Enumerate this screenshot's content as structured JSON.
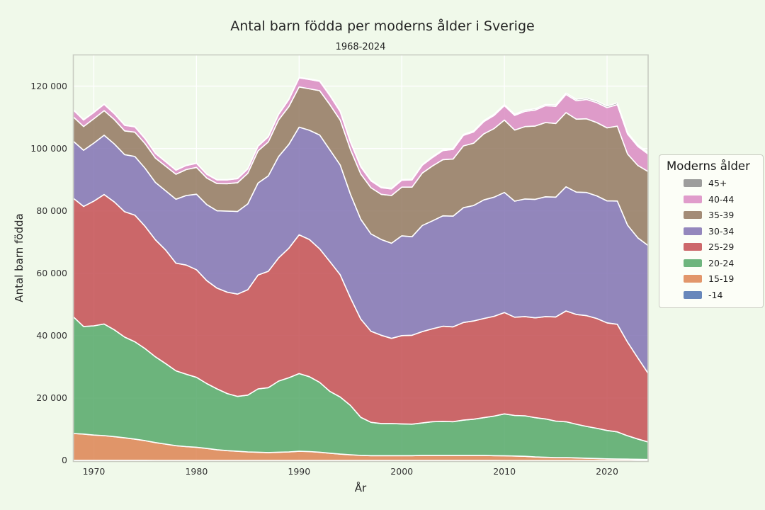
{
  "figure": {
    "background_color": "#f0f9ea",
    "plot_border_color": "#c9ccc2",
    "gridline_color": "#ffffff",
    "area_edge_color": "#ffffff"
  },
  "chart_data": {
    "type": "area",
    "stacked": true,
    "title": "Antal barn födda per moderns ålder i Sverige",
    "subtitle": "1968-2024",
    "xlabel": "År",
    "ylabel": "Antal barn födda",
    "xlim": [
      1968,
      2024
    ],
    "ylim": [
      0,
      130000
    ],
    "grid": true,
    "x_ticks": {
      "values": [
        1970,
        1980,
        1990,
        2000,
        2010,
        2020
      ],
      "labels": [
        "1970",
        "1980",
        "1990",
        "2000",
        "2010",
        "2020"
      ]
    },
    "y_ticks": {
      "values": [
        0,
        20000,
        40000,
        60000,
        80000,
        100000,
        120000
      ],
      "labels": [
        "0",
        "20 000",
        "40 000",
        "60 000",
        "80 000",
        "100 000",
        "120 000"
      ]
    },
    "x": [
      1968,
      1969,
      1970,
      1971,
      1972,
      1973,
      1974,
      1975,
      1976,
      1977,
      1978,
      1979,
      1980,
      1981,
      1982,
      1983,
      1984,
      1985,
      1986,
      1987,
      1988,
      1989,
      1990,
      1991,
      1992,
      1993,
      1994,
      1995,
      1996,
      1997,
      1998,
      1999,
      2000,
      2001,
      2002,
      2003,
      2004,
      2005,
      2006,
      2007,
      2008,
      2009,
      2010,
      2011,
      2012,
      2013,
      2014,
      2015,
      2016,
      2017,
      2018,
      2019,
      2020,
      2021,
      2022,
      2023,
      2024
    ],
    "series": [
      {
        "name": "-14",
        "color": "#4C72B0",
        "values": [
          40,
          40,
          40,
          40,
          40,
          35,
          35,
          35,
          30,
          30,
          30,
          30,
          30,
          30,
          30,
          25,
          25,
          25,
          25,
          25,
          25,
          25,
          30,
          30,
          25,
          25,
          20,
          20,
          20,
          20,
          20,
          20,
          15,
          15,
          15,
          15,
          15,
          15,
          15,
          15,
          12,
          12,
          10,
          10,
          10,
          10,
          10,
          8,
          8,
          8,
          8,
          6,
          6,
          5,
          5,
          5,
          5
        ]
      },
      {
        "name": "15-19",
        "color": "#DD8452",
        "values": [
          8600,
          8400,
          8100,
          7900,
          7600,
          7200,
          6800,
          6300,
          5700,
          5200,
          4700,
          4400,
          4200,
          3800,
          3400,
          3100,
          2900,
          2700,
          2600,
          2500,
          2600,
          2700,
          2900,
          2800,
          2600,
          2300,
          2000,
          1800,
          1600,
          1500,
          1500,
          1500,
          1500,
          1500,
          1600,
          1600,
          1600,
          1600,
          1600,
          1600,
          1600,
          1500,
          1500,
          1400,
          1300,
          1100,
          1000,
          900,
          900,
          800,
          700,
          600,
          500,
          450,
          400,
          350,
          300
        ]
      },
      {
        "name": "20-24",
        "color": "#55A868",
        "values": [
          37400,
          34500,
          35000,
          35800,
          34200,
          32300,
          31200,
          29500,
          27500,
          25800,
          24000,
          23200,
          22400,
          20800,
          19500,
          18300,
          17600,
          18200,
          20300,
          20800,
          22800,
          23800,
          24900,
          24000,
          22400,
          19800,
          18300,
          15800,
          12200,
          10700,
          10300,
          10300,
          10200,
          10100,
          10400,
          10800,
          10900,
          10800,
          11300,
          11600,
          12100,
          12700,
          13400,
          13000,
          13000,
          12600,
          12300,
          11700,
          11500,
          10800,
          10200,
          9700,
          9100,
          8700,
          7500,
          6500,
          5600
        ]
      },
      {
        "name": "25-29",
        "color": "#C44E52",
        "values": [
          38000,
          38500,
          40000,
          41500,
          41000,
          40200,
          40600,
          39200,
          37500,
          36400,
          34500,
          35000,
          34500,
          33000,
          32300,
          32500,
          32800,
          33800,
          36500,
          37300,
          39500,
          41500,
          44500,
          44000,
          42800,
          41600,
          39200,
          34500,
          31500,
          29200,
          28300,
          27300,
          28300,
          28500,
          29300,
          29800,
          30500,
          30400,
          31300,
          31500,
          31800,
          32000,
          32500,
          31500,
          31800,
          32000,
          32800,
          33400,
          35500,
          35200,
          35500,
          35200,
          34500,
          34500,
          30000,
          26000,
          22000
        ]
      },
      {
        "name": "30-34",
        "color": "#8172B3",
        "values": [
          18300,
          18000,
          18600,
          19000,
          18600,
          18300,
          18800,
          18600,
          18400,
          19000,
          20500,
          22300,
          24200,
          24400,
          24800,
          26000,
          26500,
          27500,
          29500,
          30600,
          32500,
          33300,
          34500,
          35000,
          36500,
          35800,
          35200,
          33200,
          32000,
          31200,
          30700,
          30500,
          32000,
          31600,
          34000,
          34600,
          35400,
          35500,
          36800,
          37000,
          38000,
          38200,
          38500,
          37200,
          37700,
          38000,
          38400,
          38400,
          39800,
          39200,
          39500,
          39300,
          39100,
          39500,
          37500,
          38500,
          41000
        ]
      },
      {
        "name": "35-39",
        "color": "#937860",
        "values": [
          7800,
          7600,
          7800,
          7900,
          7800,
          7600,
          7800,
          7900,
          7800,
          7900,
          8000,
          8300,
          8600,
          8500,
          8700,
          8800,
          9200,
          9800,
          10300,
          10900,
          11700,
          12100,
          12900,
          13300,
          14200,
          14500,
          14400,
          14300,
          14500,
          14800,
          14500,
          15300,
          15600,
          15900,
          16800,
          17600,
          18000,
          18300,
          19800,
          20000,
          21200,
          22000,
          23200,
          22800,
          23200,
          23500,
          23800,
          23600,
          23800,
          23400,
          23600,
          23500,
          23400,
          24000,
          22800,
          23200,
          23700
        ]
      },
      {
        "name": "40-44",
        "color": "#DA8BC3",
        "values": [
          2200,
          2100,
          2000,
          2000,
          1900,
          1800,
          1700,
          1600,
          1500,
          1400,
          1300,
          1300,
          1300,
          1200,
          1200,
          1200,
          1300,
          1400,
          1500,
          1600,
          1800,
          2300,
          2900,
          3000,
          3000,
          2900,
          2700,
          2400,
          2300,
          2200,
          2100,
          2100,
          2200,
          2300,
          2500,
          2700,
          2900,
          3100,
          3400,
          3600,
          3900,
          4200,
          4600,
          4700,
          4900,
          5100,
          5400,
          5500,
          5800,
          5900,
          6200,
          6400,
          6500,
          6900,
          6400,
          6100,
          5600
        ]
      },
      {
        "name": "45+",
        "color": "#8C8C8C",
        "values": [
          120,
          120,
          120,
          120,
          110,
          110,
          110,
          100,
          100,
          100,
          100,
          100,
          110,
          110,
          110,
          110,
          120,
          120,
          130,
          130,
          140,
          150,
          160,
          170,
          180,
          180,
          190,
          190,
          200,
          200,
          210,
          220,
          230,
          240,
          260,
          270,
          280,
          290,
          310,
          320,
          340,
          360,
          380,
          390,
          400,
          410,
          420,
          430,
          450,
          450,
          470,
          480,
          490,
          520,
          480,
          460,
          450
        ]
      }
    ],
    "legend": {
      "title": "Moderns ålder",
      "position": "right",
      "entries": [
        "45+",
        "40-44",
        "35-39",
        "30-34",
        "25-29",
        "20-24",
        "15-19",
        "-14"
      ]
    }
  }
}
